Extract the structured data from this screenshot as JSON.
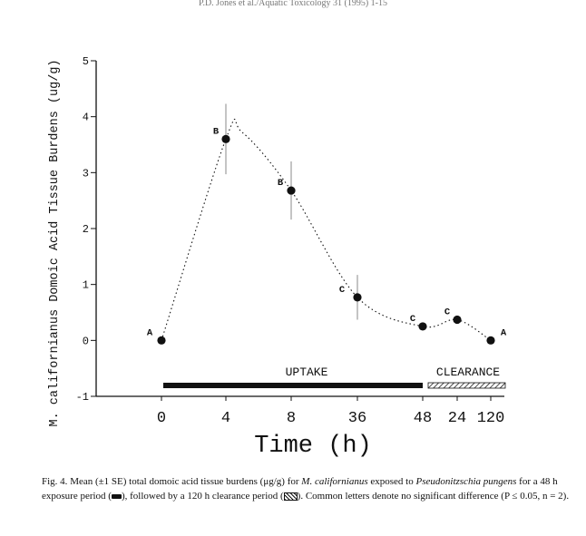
{
  "page": {
    "running_header": "P.D. Jones et al./Aquatic Toxicology 31 (1995) 1-15"
  },
  "chart_data": {
    "type": "scatter",
    "title": "",
    "xlabel": "Time (h)",
    "ylabel": "M. californianus Domoic Acid Tissue Burdens (ug/g)",
    "ylim": [
      -1,
      5
    ],
    "yticks": [
      -1,
      0,
      1,
      2,
      3,
      4,
      5
    ],
    "categories": [
      "0",
      "4",
      "8",
      "36",
      "48",
      "24",
      "120"
    ],
    "series": [
      {
        "values": [
          0.0,
          3.6,
          2.68,
          0.77,
          0.25,
          0.37,
          0.0
        ],
        "se": [
          0.05,
          0.63,
          0.52,
          0.4,
          0.05,
          0.05,
          0.05
        ],
        "letters": [
          "A",
          "B",
          "B",
          "C",
          "C",
          "C",
          "A"
        ]
      }
    ],
    "periods": [
      {
        "label": "UPTAKE",
        "pattern": "solid"
      },
      {
        "label": "CLEARANCE",
        "pattern": "hatched"
      }
    ],
    "grid": false,
    "curve": "dotted smooth fit"
  },
  "caption": {
    "fig_label": "Fig. 4.",
    "t1": " Mean (±1 SE) total domoic acid tissue burdens (μg/g) for ",
    "species1": "M. californianus",
    "t2": " exposed to ",
    "species2": "Pseudonitzschia pungens",
    "t3": " for a 48 h exposure period (",
    "t4": "), followed by a 120 h clearance period (",
    "t5": "). Common letters denote no significant difference (P ≤ 0.05, n = 2)."
  }
}
